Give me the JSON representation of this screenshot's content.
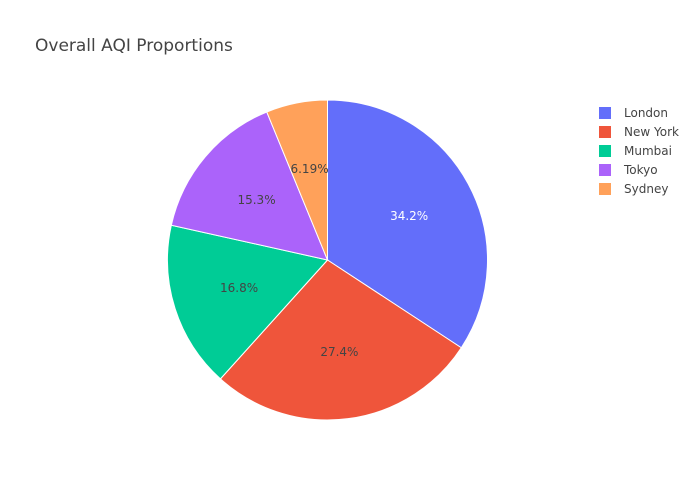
{
  "chart_data": {
    "type": "pie",
    "title": "Overall AQI Proportions",
    "categories": [
      "London",
      "New York",
      "Mumbai",
      "Tokyo",
      "Sydney"
    ],
    "values": [
      34.2,
      27.4,
      16.8,
      15.3,
      6.19
    ],
    "labels": [
      "34.2%",
      "27.4%",
      "16.8%",
      "15.3%",
      "6.19%"
    ],
    "colors": [
      "#636efa",
      "#ef553b",
      "#00cc96",
      "#ab63fa",
      "#ffa15a"
    ],
    "label_colors": [
      "#ffffff",
      "#444444",
      "#444444",
      "#444444",
      "#444444"
    ],
    "legend_position": "top-right",
    "direction": "clockwise",
    "start": "top"
  }
}
